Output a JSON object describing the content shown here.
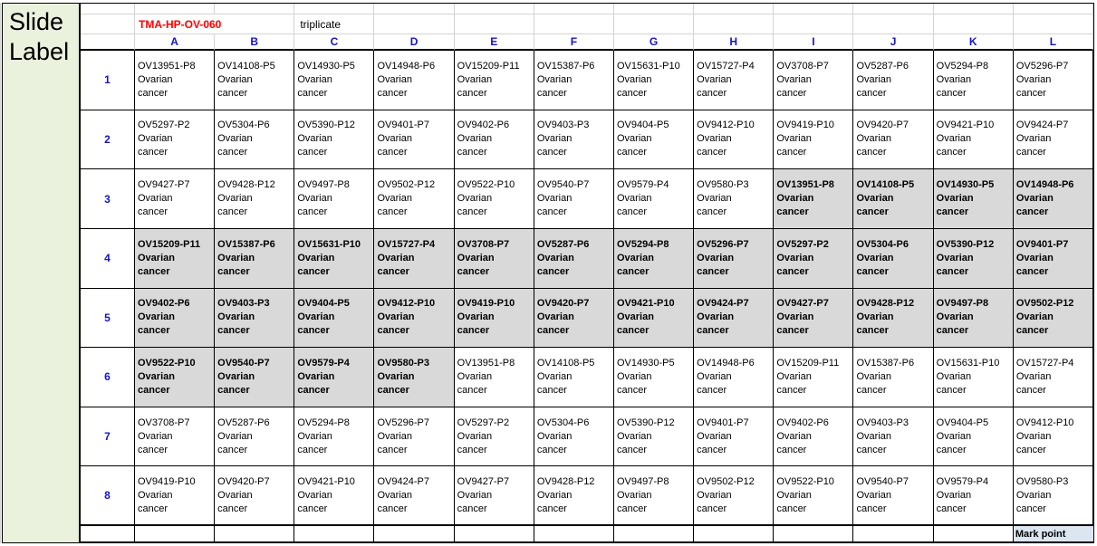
{
  "slide_label": "Slide Label",
  "header": {
    "tma_id": "TMA-HP-OV-060",
    "note": "triplicate",
    "columns": [
      "A",
      "B",
      "C",
      "D",
      "E",
      "F",
      "G",
      "H",
      "I",
      "J",
      "K",
      "L"
    ]
  },
  "body": {
    "diagnosis": "Ovarian cancer",
    "rows": [
      {
        "num": "1",
        "cells": [
          {
            "id": "OV13951-P8",
            "hl": false
          },
          {
            "id": "OV14108-P5",
            "hl": false
          },
          {
            "id": "OV14930-P5",
            "hl": false
          },
          {
            "id": "OV14948-P6",
            "hl": false
          },
          {
            "id": "OV15209-P11",
            "hl": false
          },
          {
            "id": "OV15387-P6",
            "hl": false
          },
          {
            "id": "OV15631-P10",
            "hl": false
          },
          {
            "id": "OV15727-P4",
            "hl": false
          },
          {
            "id": "OV3708-P7",
            "hl": false
          },
          {
            "id": "OV5287-P6",
            "hl": false
          },
          {
            "id": "OV5294-P8",
            "hl": false
          },
          {
            "id": "OV5296-P7",
            "hl": false
          }
        ]
      },
      {
        "num": "2",
        "cells": [
          {
            "id": "OV5297-P2",
            "hl": false
          },
          {
            "id": "OV5304-P6",
            "hl": false
          },
          {
            "id": "OV5390-P12",
            "hl": false
          },
          {
            "id": "OV9401-P7",
            "hl": false
          },
          {
            "id": "OV9402-P6",
            "hl": false
          },
          {
            "id": "OV9403-P3",
            "hl": false
          },
          {
            "id": "OV9404-P5",
            "hl": false
          },
          {
            "id": "OV9412-P10",
            "hl": false
          },
          {
            "id": "OV9419-P10",
            "hl": false
          },
          {
            "id": "OV9420-P7",
            "hl": false
          },
          {
            "id": "OV9421-P10",
            "hl": false
          },
          {
            "id": "OV9424-P7",
            "hl": false
          }
        ]
      },
      {
        "num": "3",
        "cells": [
          {
            "id": "OV9427-P7",
            "hl": false
          },
          {
            "id": "OV9428-P12",
            "hl": false
          },
          {
            "id": "OV9497-P8",
            "hl": false
          },
          {
            "id": "OV9502-P12",
            "hl": false
          },
          {
            "id": "OV9522-P10",
            "hl": false
          },
          {
            "id": "OV9540-P7",
            "hl": false
          },
          {
            "id": "OV9579-P4",
            "hl": false
          },
          {
            "id": "OV9580-P3",
            "hl": false
          },
          {
            "id": "OV13951-P8",
            "hl": true
          },
          {
            "id": "OV14108-P5",
            "hl": true
          },
          {
            "id": "OV14930-P5",
            "hl": true
          },
          {
            "id": "OV14948-P6",
            "hl": true
          }
        ]
      },
      {
        "num": "4",
        "cells": [
          {
            "id": "OV15209-P11",
            "hl": true
          },
          {
            "id": "OV15387-P6",
            "hl": true
          },
          {
            "id": "OV15631-P10",
            "hl": true
          },
          {
            "id": "OV15727-P4",
            "hl": true
          },
          {
            "id": "OV3708-P7",
            "hl": true
          },
          {
            "id": "OV5287-P6",
            "hl": true
          },
          {
            "id": "OV5294-P8",
            "hl": true
          },
          {
            "id": "OV5296-P7",
            "hl": true
          },
          {
            "id": "OV5297-P2",
            "hl": true
          },
          {
            "id": "OV5304-P6",
            "hl": true
          },
          {
            "id": "OV5390-P12",
            "hl": true
          },
          {
            "id": "OV9401-P7",
            "hl": true
          }
        ]
      },
      {
        "num": "5",
        "cells": [
          {
            "id": "OV9402-P6",
            "hl": true
          },
          {
            "id": "OV9403-P3",
            "hl": true
          },
          {
            "id": "OV9404-P5",
            "hl": true
          },
          {
            "id": "OV9412-P10",
            "hl": true
          },
          {
            "id": "OV9419-P10",
            "hl": true
          },
          {
            "id": "OV9420-P7",
            "hl": true
          },
          {
            "id": "OV9421-P10",
            "hl": true
          },
          {
            "id": "OV9424-P7",
            "hl": true
          },
          {
            "id": "OV9427-P7",
            "hl": true
          },
          {
            "id": "OV9428-P12",
            "hl": true
          },
          {
            "id": "OV9497-P8",
            "hl": true
          },
          {
            "id": "OV9502-P12",
            "hl": true
          }
        ]
      },
      {
        "num": "6",
        "cells": [
          {
            "id": "OV9522-P10",
            "hl": true
          },
          {
            "id": "OV9540-P7",
            "hl": true
          },
          {
            "id": "OV9579-P4",
            "hl": true
          },
          {
            "id": "OV9580-P3",
            "hl": true
          },
          {
            "id": "OV13951-P8",
            "hl": false
          },
          {
            "id": "OV14108-P5",
            "hl": false
          },
          {
            "id": "OV14930-P5",
            "hl": false
          },
          {
            "id": "OV14948-P6",
            "hl": false
          },
          {
            "id": "OV15209-P11",
            "hl": false
          },
          {
            "id": "OV15387-P6",
            "hl": false
          },
          {
            "id": "OV15631-P10",
            "hl": false
          },
          {
            "id": "OV15727-P4",
            "hl": false
          }
        ]
      },
      {
        "num": "7",
        "cells": [
          {
            "id": "OV3708-P7",
            "hl": false
          },
          {
            "id": "OV5287-P6",
            "hl": false
          },
          {
            "id": "OV5294-P8",
            "hl": false
          },
          {
            "id": "OV5296-P7",
            "hl": false
          },
          {
            "id": "OV5297-P2",
            "hl": false
          },
          {
            "id": "OV5304-P6",
            "hl": false
          },
          {
            "id": "OV5390-P12",
            "hl": false
          },
          {
            "id": "OV9401-P7",
            "hl": false
          },
          {
            "id": "OV9402-P6",
            "hl": false
          },
          {
            "id": "OV9403-P3",
            "hl": false
          },
          {
            "id": "OV9404-P5",
            "hl": false
          },
          {
            "id": "OV9412-P10",
            "hl": false
          }
        ]
      },
      {
        "num": "8",
        "cells": [
          {
            "id": "OV9419-P10",
            "hl": false
          },
          {
            "id": "OV9420-P7",
            "hl": false
          },
          {
            "id": "OV9421-P10",
            "hl": false
          },
          {
            "id": "OV9424-P7",
            "hl": false
          },
          {
            "id": "OV9427-P7",
            "hl": false
          },
          {
            "id": "OV9428-P12",
            "hl": false
          },
          {
            "id": "OV9497-P8",
            "hl": false
          },
          {
            "id": "OV9502-P12",
            "hl": false
          },
          {
            "id": "OV9522-P10",
            "hl": false
          },
          {
            "id": "OV9540-P7",
            "hl": false
          },
          {
            "id": "OV9579-P4",
            "hl": false
          },
          {
            "id": "OV9580-P3",
            "hl": false
          }
        ]
      }
    ]
  },
  "footer": {
    "mark_point": "Mark point"
  },
  "colors": {
    "highlight_bg": "#D9D9D9",
    "slide_label_bg": "#EAF1DD",
    "mark_point_bg": "#DCE6F1",
    "tma_id_color": "#FF0000",
    "header_text_color": "#1414CC",
    "faint_gridline": "#D4D4D4"
  }
}
